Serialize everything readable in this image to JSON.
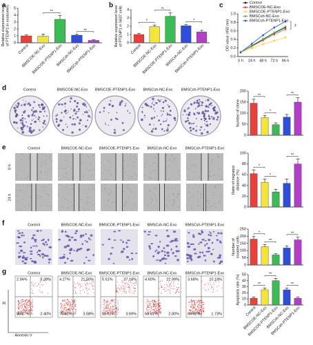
{
  "chart_data": [
    {
      "type": "bar",
      "panel": "a",
      "ylabel": [
        "Relative expression level",
        "of PTENP1 in exosomes"
      ],
      "categories": [
        "Control",
        "BMSCOE-NC-Exo",
        "BMSCOE-PTENP1-Exo",
        "BMSCsh-NC-Exo",
        "BMSCsh-PTENP1-Exo"
      ],
      "values": [
        1.0,
        0.95,
        3.4,
        1.1,
        0.35
      ],
      "errors": [
        0.15,
        0.3,
        0.55,
        0.12,
        0.08
      ],
      "colors": [
        "#e8413c",
        "#f3e53c",
        "#3dbb54",
        "#2f4fd8",
        "#b33fc8"
      ],
      "ylim": [
        0,
        5
      ],
      "yticks": [
        0,
        1,
        2,
        3,
        4,
        5
      ],
      "annotations": [
        {
          "text": "**",
          "between": [
            1,
            2
          ]
        },
        {
          "text": "**",
          "between": [
            3,
            4
          ]
        }
      ]
    },
    {
      "type": "bar",
      "panel": "b",
      "ylabel": [
        "Relative expression level",
        "of PTENP1 in 5637 cells"
      ],
      "categories": [
        "Control",
        "BMSCOE-NC-Exo",
        "BMSCOE-PTENP1-Exo",
        "BMSCsh-NC-Exo",
        "BMSCsh-PTENP1-Exo"
      ],
      "values": [
        1.0,
        1.95,
        3.2,
        2.05,
        1.3
      ],
      "errors": [
        0.15,
        0.2,
        0.4,
        0.15,
        0.2
      ],
      "colors": [
        "#e8413c",
        "#f3e53c",
        "#3dbb54",
        "#2f4fd8",
        "#b33fc8"
      ],
      "ylim": [
        0,
        4
      ],
      "yticks": [
        0,
        1,
        2,
        3,
        4
      ],
      "annotations": [
        {
          "text": "*",
          "between": [
            0,
            1
          ]
        },
        {
          "text": "**",
          "between": [
            1,
            2
          ]
        },
        {
          "text": "*",
          "between": [
            3,
            4
          ]
        }
      ]
    },
    {
      "type": "line",
      "panel": "c",
      "ylabel": [
        "OD value (450 nm)"
      ],
      "categories": [
        "0 h",
        "24 h",
        "48 h",
        "72 h",
        "96 h"
      ],
      "series": [
        {
          "name": "Control",
          "color": "#111111",
          "values": [
            0.1,
            0.25,
            0.4,
            0.55,
            0.68
          ]
        },
        {
          "name": "BMSCOE-NC-Exo",
          "color": "#e8413c",
          "values": [
            0.1,
            0.24,
            0.38,
            0.52,
            0.64
          ]
        },
        {
          "name": "BMSCOE-PTENP1-Exo",
          "color": "#f3d53c",
          "values": [
            0.1,
            0.2,
            0.29,
            0.37,
            0.45
          ]
        },
        {
          "name": "BMSCsh-NC-Exo",
          "color": "#3dbb54",
          "values": [
            0.1,
            0.26,
            0.41,
            0.56,
            0.7
          ]
        },
        {
          "name": "BMSCsh-PTENP1-Exo",
          "color": "#2f4fd8",
          "values": [
            0.1,
            0.3,
            0.5,
            0.68,
            0.82
          ]
        }
      ],
      "ylim": [
        0,
        1.0
      ],
      "yticks": [
        {
          "value": 0,
          "label": "0.0"
        },
        0.2,
        0.4,
        0.6,
        0.8,
        {
          "value": 1.0,
          "label": "1.0"
        }
      ],
      "annotations": [
        {
          "text": "**"
        }
      ]
    },
    {
      "type": "bar",
      "panel": "d",
      "ylabel": [
        "Number of clone"
      ],
      "values": [
        145,
        80,
        48,
        82,
        150
      ],
      "errors": [
        18,
        10,
        8,
        12,
        20
      ],
      "colors": [
        "#e8413c",
        "#f3e53c",
        "#3dbb54",
        "#2f4fd8",
        "#b33fc8"
      ],
      "ylim": [
        0,
        200
      ],
      "yticks": [
        0,
        50,
        100,
        150,
        200
      ],
      "annotations": [
        {
          "text": "**",
          "between": [
            0,
            1
          ]
        },
        {
          "text": "*",
          "between": [
            1,
            2
          ]
        },
        {
          "text": "**",
          "between": [
            3,
            4
          ]
        }
      ]
    },
    {
      "type": "bar",
      "panel": "e",
      "ylabel": [
        "Ratio of migrated",
        "distance (%)"
      ],
      "values": [
        62,
        46,
        28,
        44,
        80
      ],
      "errors": [
        7,
        6,
        5,
        8,
        9
      ],
      "colors": [
        "#e8413c",
        "#f3e53c",
        "#3dbb54",
        "#2f4fd8",
        "#b33fc8"
      ],
      "ylim": [
        0,
        100
      ],
      "yticks": [
        0,
        20,
        40,
        60,
        80,
        100
      ],
      "annotations": [
        {
          "text": "*",
          "between": [
            0,
            1
          ]
        },
        {
          "text": "*",
          "between": [
            1,
            2
          ]
        },
        {
          "text": "**",
          "between": [
            3,
            4
          ]
        }
      ]
    },
    {
      "type": "bar",
      "panel": "f",
      "ylabel": [
        "Number of",
        "invaded cells"
      ],
      "values": [
        180,
        128,
        70,
        118,
        175
      ],
      "errors": [
        18,
        14,
        8,
        14,
        18
      ],
      "colors": [
        "#e8413c",
        "#f3e53c",
        "#3dbb54",
        "#2f4fd8",
        "#b33fc8"
      ],
      "ylim": [
        0,
        250
      ],
      "yticks": [
        0,
        50,
        100,
        150,
        200,
        250
      ],
      "annotations": [
        {
          "text": "*",
          "between": [
            0,
            1
          ]
        },
        {
          "text": "**",
          "between": [
            1,
            2
          ]
        },
        {
          "text": "**",
          "between": [
            3,
            4
          ]
        }
      ]
    },
    {
      "type": "bar",
      "panel": "g",
      "ylabel": [
        "Apoptosis rate (%)"
      ],
      "categories": [
        "Control",
        "BMSCOE-NC-Exo",
        "BMSCOE-PTENP1-Exo",
        "BMSCsh-NC-Exo",
        "BMSCsh-PTENP1-Exo"
      ],
      "values": [
        11,
        25,
        40,
        25,
        11
      ],
      "errors": [
        2,
        3,
        4,
        3,
        2
      ],
      "colors": [
        "#e8413c",
        "#f3e53c",
        "#3dbb54",
        "#2f4fd8",
        "#b33fc8"
      ],
      "ylim": [
        0,
        50
      ],
      "yticks": [
        0,
        10,
        20,
        30,
        40,
        50
      ],
      "annotations": [
        {
          "text": "**",
          "between": [
            0,
            1
          ]
        },
        {
          "text": "**",
          "between": [
            1,
            2
          ]
        },
        {
          "text": "**",
          "between": [
            3,
            4
          ]
        }
      ]
    }
  ],
  "figure": {
    "panel_labels": [
      "a",
      "b",
      "c",
      "d",
      "e",
      "f",
      "g"
    ],
    "d": {
      "columns": [
        "Control",
        "BMSCOE-NC-Exo",
        "BMSCOE-PTENP1-Exo",
        "BMSCsh-NC-Exo",
        "BMSCsh-PTENP1-Exo"
      ]
    },
    "e": {
      "columns": [
        "Control",
        "BMSCOE-NC-Exo",
        "BMSCOE-PTENP1-Exo",
        "BMSCsh-NC-Exo",
        "BMSCsh-PTENP1-Exo"
      ],
      "rows": [
        "0 h",
        "24 h"
      ]
    },
    "f": {
      "columns": [
        "Control",
        "BMSCOE-NC-Exo",
        "BMSCOE-PTENP1-Exo",
        "BMSCsh-NC-Exo",
        "BMSCsh-PTENP1-Exo"
      ]
    },
    "g": {
      "columns": [
        "Control",
        "BMSCOE-NC-Exo",
        "BMSCOE-PTENP1-Exo",
        "BMSCsh-NC-Exo",
        "BMSCsh-PTENP1-Exo"
      ],
      "quadrants": [
        [
          "2.94%",
          "9.39%",
          "85.27%",
          "2.40%"
        ],
        [
          "4.27%",
          "21.50%",
          "70.65%",
          "3.58%"
        ],
        [
          "5.51%",
          "37.18%",
          "53.62%",
          "3.69%"
        ],
        [
          "4.60%",
          "22.99%",
          "69.61%",
          "2.80%"
        ],
        [
          "3.68%",
          "10.19%",
          "84.42%",
          "1.73%"
        ]
      ],
      "y_axis": "PI",
      "x_axis": "Annexin V"
    }
  }
}
